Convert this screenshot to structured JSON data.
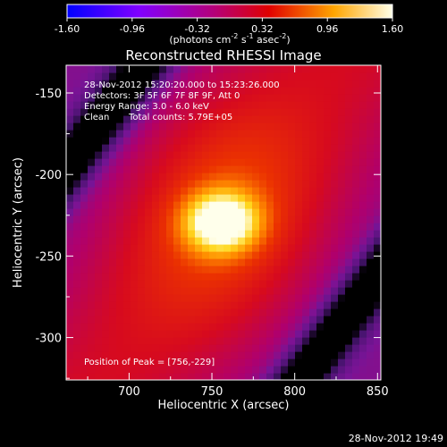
{
  "chart_data": {
    "type": "heatmap",
    "title": "Reconstructed RHESSI Image",
    "xlabel": "Heliocentric X (arcsec)",
    "ylabel": "Heliocentric Y (arcsec)",
    "xlim": [
      662,
      852
    ],
    "ylim": [
      -326,
      -133
    ],
    "xticks": [
      700,
      750,
      800,
      850
    ],
    "yticks": [
      -150,
      -200,
      -250,
      -300
    ],
    "colorbar": {
      "min": -1.6,
      "max": 1.6,
      "ticks": [
        "-1.60",
        "-0.96",
        "-0.32",
        "0.32",
        "0.96",
        "1.60"
      ],
      "label_main": "(photons cm",
      "label_exp1": "-2",
      "label_mid1": " s",
      "label_exp2": "-1",
      "label_mid2": " asec",
      "label_exp3": "-2",
      "label_end": ")"
    },
    "peak": {
      "x": 756,
      "y": -229
    },
    "annotations": {
      "time_range": "28-Nov-2012 15:20:20.000 to 15:23:26.000",
      "detectors": "Detectors: 3F 5F 6F 7F 8F 9F, Att 0",
      "energy": "Energy Range: 3.0 - 6.0 keV",
      "method": "Clean",
      "counts": "Total counts: 5.79E+05",
      "peak_text": "Position of Peak = [756,-229]"
    },
    "timestamp": "28-Nov-2012 19:49",
    "grid": false
  }
}
